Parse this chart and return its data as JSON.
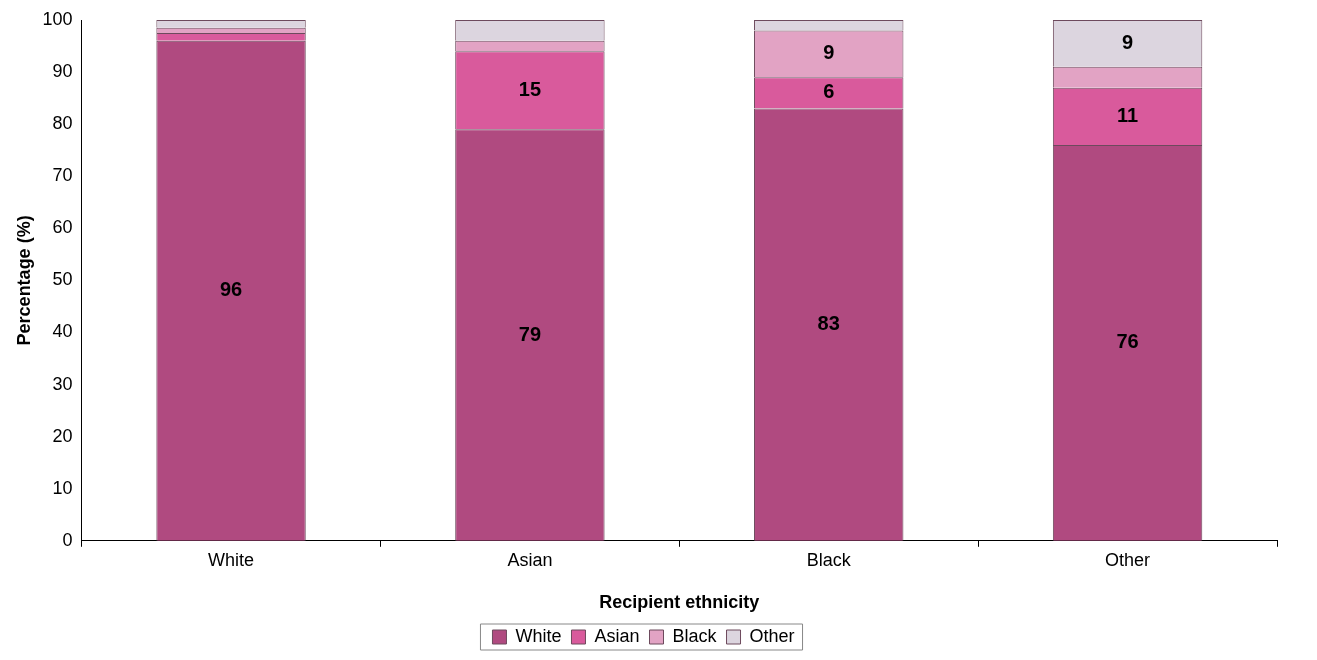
{
  "chart_data": {
    "type": "bar",
    "stacked": true,
    "xlabel": "Recipient ethnicity",
    "ylabel": "Percentage (%)",
    "categories": [
      "White",
      "Asian",
      "Black",
      "Other"
    ],
    "series": [
      {
        "name": "White",
        "color": "#b04a80",
        "values": [
          96,
          79,
          83,
          76
        ],
        "value_labels": [
          "96",
          "79",
          "83",
          "76"
        ]
      },
      {
        "name": "Asian",
        "color": "#d95a9c",
        "values": [
          1.5,
          15,
          6,
          11
        ],
        "value_labels": [
          null,
          "15",
          "6",
          "11"
        ]
      },
      {
        "name": "Black",
        "color": "#e2a3c4",
        "values": [
          1,
          2,
          9,
          4
        ],
        "value_labels": [
          null,
          null,
          "9",
          null
        ]
      },
      {
        "name": "Other",
        "color": "#dcd5df",
        "values": [
          1.5,
          4,
          2,
          9
        ],
        "value_labels": [
          null,
          null,
          null,
          "9"
        ]
      }
    ],
    "ylim": [
      0,
      100
    ],
    "yticks": [
      0,
      10,
      20,
      30,
      40,
      50,
      60,
      70,
      80,
      90,
      100
    ],
    "grid": false,
    "legend": "bottom"
  }
}
